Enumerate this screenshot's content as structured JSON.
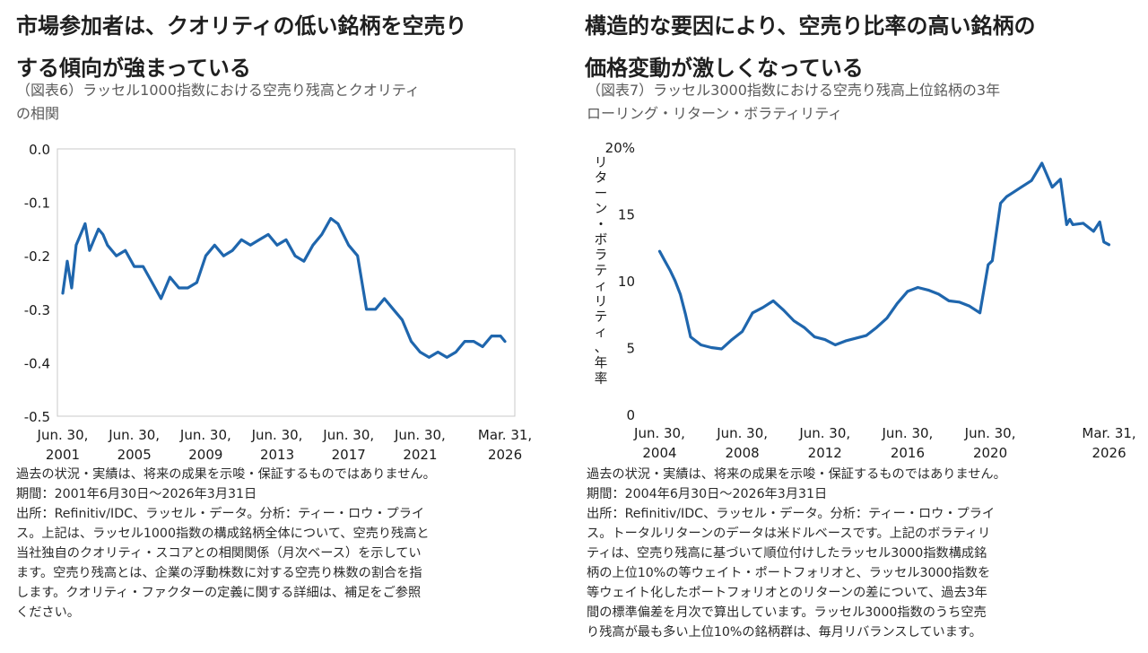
{
  "left": {
    "headline_line1": "市場参加者は、クオリティの低い銘柄を空売り",
    "headline_line2": "する傾向が強まっている",
    "subtitle_line1": "（図表6）ラッセル1000指数における空売り残高とクオリティ",
    "subtitle_line2": "の相関",
    "notes": {
      "line1": "過去の状況・実績は、将来の成果を示唆・保証するものではありません。",
      "line2": "期間：2001年6月30日～2026年3月31日",
      "line3": "出所：Refinitiv/IDC、ラッセル・データ。分析：ティー・ロウ・プライ",
      "line4": "ス。上記は、ラッセル1000指数の構成銘柄全体について、空売り残高と",
      "line5": "当社独自のクオリティ・スコアとの相関関係（月次ベース）を示してい",
      "line6": "ます。空売り残高とは、企業の浮動株数に対する空売り株数の割合を指",
      "line7": "します。クオリティ・ファクターの定義に関する詳細は、補足をご参照",
      "line8": "ください。"
    }
  },
  "right": {
    "headline_line1": "構造的な要因により、空売り比率の高い銘柄の",
    "headline_line2": "価格変動が激しくなっている",
    "subtitle_line1": "（図表7）ラッセル3000指数における空売り残高上位銘柄の3年",
    "subtitle_line2": "ローリング・リターン・ボラティリティ",
    "notes": {
      "line1": "過去の状況・実績は、将来の成果を示唆・保証するものではありません。",
      "line2": "期間：2004年6月30日～2026年3月31日",
      "line3": "出所：Refinitiv/IDC、ラッセル・データ。分析：ティー・ロウ・プライ",
      "line4": "ス。トータルリターンのデータは米ドルベースです。上記のボラティリ",
      "line5": "ティは、空売り残高に基づいて順位付けしたラッセル3000指数構成銘",
      "line6": "柄の上位10%の等ウェイト・ポートフォリオと、ラッセル3000指数を",
      "line7": "等ウェイト化したポートフォリオとのリターンの差について、過去3年",
      "line8": "間の標準偏差を月次で算出しています。ラッセル3000指数のうち空売",
      "line9": "り残高が最も多い上位10%の銘柄群は、毎月リバランスしています。"
    }
  },
  "chart_data": [
    {
      "type": "line",
      "title": "",
      "xlabel": "",
      "ylabel": "",
      "line_color": "#1f66ad",
      "ylim": [
        -0.5,
        0.0
      ],
      "y_ticks": [
        "0.0",
        "-0.1",
        "-0.2",
        "-0.3",
        "-0.4",
        "-0.5"
      ],
      "x_tick_labels": [
        [
          "Jun. 30,",
          "2001"
        ],
        [
          "Jun. 30,",
          "2005"
        ],
        [
          "Jun. 30,",
          "2009"
        ],
        [
          "Jun. 30,",
          "2013"
        ],
        [
          "Jun. 30,",
          "2017"
        ],
        [
          "Jun. 30,",
          "2021"
        ],
        [
          "Mar. 31,",
          "2026"
        ]
      ],
      "x": [
        2001.5,
        2001.75,
        2002.0,
        2002.25,
        2002.5,
        2002.75,
        2003.0,
        2003.25,
        2003.5,
        2003.75,
        2004.0,
        2004.5,
        2005.0,
        2005.5,
        2006.0,
        2006.5,
        2007.0,
        2007.5,
        2008.0,
        2008.5,
        2009.0,
        2009.5,
        2010.0,
        2010.5,
        2011.0,
        2011.5,
        2012.0,
        2012.5,
        2013.0,
        2013.5,
        2014.0,
        2014.5,
        2015.0,
        2015.5,
        2016.0,
        2016.5,
        2016.9,
        2017.5,
        2018.0,
        2018.5,
        2019.0,
        2019.5,
        2020.0,
        2020.5,
        2021.0,
        2021.5,
        2022.0,
        2022.5,
        2023.0,
        2023.5,
        2024.0,
        2024.5,
        2025.0,
        2025.5,
        2026.0,
        2026.25
      ],
      "y": [
        -0.27,
        -0.21,
        -0.26,
        -0.18,
        -0.16,
        -0.14,
        -0.19,
        -0.17,
        -0.15,
        -0.16,
        -0.18,
        -0.2,
        -0.19,
        -0.22,
        -0.22,
        -0.25,
        -0.28,
        -0.24,
        -0.26,
        -0.26,
        -0.25,
        -0.2,
        -0.18,
        -0.2,
        -0.19,
        -0.17,
        -0.18,
        -0.17,
        -0.16,
        -0.18,
        -0.17,
        -0.2,
        -0.21,
        -0.18,
        -0.16,
        -0.13,
        -0.14,
        -0.18,
        -0.2,
        -0.3,
        -0.3,
        -0.28,
        -0.3,
        -0.32,
        -0.36,
        -0.38,
        -0.39,
        -0.38,
        -0.39,
        -0.38,
        -0.36,
        -0.36,
        -0.37,
        -0.35,
        -0.35,
        -0.36
      ]
    },
    {
      "type": "line",
      "title": "",
      "xlabel": "",
      "ylabel": "リターン・ボラティリティ、年率",
      "line_color": "#1f66ad",
      "ylim": [
        0,
        20
      ],
      "y_ticks": [
        "20%",
        "15",
        "10",
        "5",
        "0"
      ],
      "x_tick_labels": [
        [
          "Jun. 30,",
          "2004"
        ],
        [
          "Jun. 30,",
          "2008"
        ],
        [
          "Jun. 30,",
          "2012"
        ],
        [
          "Jun. 30,",
          "2016"
        ],
        [
          "Jun. 30,",
          "2020"
        ],
        [
          "Mar. 31,",
          "2026"
        ]
      ],
      "x": [
        2004.5,
        2004.75,
        2005.0,
        2005.25,
        2005.5,
        2005.75,
        2006.0,
        2006.5,
        2007.0,
        2007.5,
        2008.0,
        2008.5,
        2009.0,
        2009.5,
        2010.0,
        2010.5,
        2011.0,
        2011.5,
        2012.0,
        2012.5,
        2013.0,
        2013.5,
        2014.0,
        2014.5,
        2015.0,
        2015.5,
        2016.0,
        2016.5,
        2017.0,
        2017.5,
        2018.0,
        2018.5,
        2019.0,
        2019.5,
        2020.0,
        2020.4,
        2020.6,
        2021.0,
        2021.3,
        2021.6,
        2022.0,
        2022.5,
        2023.0,
        2023.5,
        2023.9,
        2024.2,
        2024.35,
        2024.5,
        2025.0,
        2025.5,
        2025.8,
        2026.0,
        2026.25
      ],
      "y": [
        12.2,
        11.5,
        10.8,
        10.0,
        9.0,
        7.5,
        5.8,
        5.2,
        5.0,
        4.9,
        5.6,
        6.2,
        7.6,
        8.0,
        8.5,
        7.8,
        7.0,
        6.5,
        5.8,
        5.6,
        5.2,
        5.5,
        5.7,
        5.9,
        6.5,
        7.2,
        8.3,
        9.2,
        9.5,
        9.3,
        9.0,
        8.5,
        8.4,
        8.1,
        7.6,
        11.2,
        11.5,
        15.8,
        16.3,
        16.6,
        17.0,
        17.5,
        18.8,
        17.0,
        17.6,
        14.2,
        14.6,
        14.2,
        14.3,
        13.7,
        14.4,
        12.9,
        12.7
      ]
    }
  ]
}
